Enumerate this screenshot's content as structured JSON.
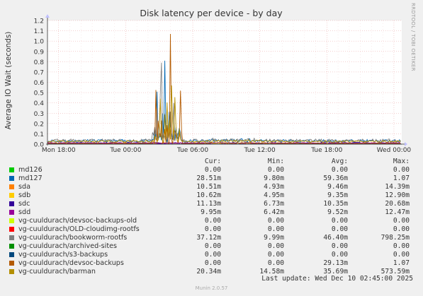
{
  "chart_data": {
    "type": "line",
    "title": "Disk latency per device - by day",
    "ylabel": "Average IO Wait (seconds)",
    "ylim": [
      0,
      1.2
    ],
    "yticks": [
      "0.0",
      "0.1",
      "0.2",
      "0.3",
      "0.4",
      "0.5",
      "0.6",
      "0.7",
      "0.8",
      "0.9",
      "1.0",
      "1.1",
      "1.2"
    ],
    "xticks": [
      "Mon 18:00",
      "Tue 00:00",
      "Tue 06:00",
      "Tue 12:00",
      "Tue 18:00",
      "Wed 00:00"
    ],
    "x_range_hours": [
      -1,
      30.7
    ],
    "grid": true,
    "side_label": "RRDTOOL / TOBI OETIKER",
    "column_headers": [
      "Cur:",
      "Min:",
      "Avg:",
      "Max:"
    ],
    "series": [
      {
        "name": "md126",
        "color": "#00cc00",
        "cur": "0.00",
        "min": "0.00",
        "avg": "0.00",
        "max": "0.00"
      },
      {
        "name": "md127",
        "color": "#0066b3",
        "cur": "28.51m",
        "min": "9.80m",
        "avg": "59.36m",
        "max": "1.07"
      },
      {
        "name": "sda",
        "color": "#ff8000",
        "cur": "10.51m",
        "min": "4.93m",
        "avg": "9.46m",
        "max": "14.39m"
      },
      {
        "name": "sdb",
        "color": "#ffcc00",
        "cur": "10.62m",
        "min": "4.95m",
        "avg": "9.35m",
        "max": "12.90m"
      },
      {
        "name": "sdc",
        "color": "#330099",
        "cur": "11.13m",
        "min": "6.73m",
        "avg": "10.35m",
        "max": "20.68m"
      },
      {
        "name": "sdd",
        "color": "#990099",
        "cur": "9.95m",
        "min": "6.42m",
        "avg": "9.52m",
        "max": "12.47m"
      },
      {
        "name": "vg-cuuldurach/devsoc-backups-old",
        "color": "#ccff00",
        "cur": "0.00",
        "min": "0.00",
        "avg": "0.00",
        "max": "0.00"
      },
      {
        "name": "vg-cuuldurach/OLD-cloudimg-rootfs",
        "color": "#ff0000",
        "cur": "0.00",
        "min": "0.00",
        "avg": "0.00",
        "max": "0.00"
      },
      {
        "name": "vg-cuuldurach/bookworm-rootfs",
        "color": "#808080",
        "cur": "37.12m",
        "min": "9.99m",
        "avg": "46.40m",
        "max": "798.25m"
      },
      {
        "name": "vg-cuuldurach/archived-sites",
        "color": "#008f00",
        "cur": "0.00",
        "min": "0.00",
        "avg": "0.00",
        "max": "0.00"
      },
      {
        "name": "vg-cuuldurach/s3-backups",
        "color": "#00487d",
        "cur": "0.00",
        "min": "0.00",
        "avg": "0.00",
        "max": "0.00"
      },
      {
        "name": "vg-cuuldurach/devsoc-backups",
        "color": "#b35a00",
        "cur": "0.00",
        "min": "0.00",
        "avg": "29.13m",
        "max": "1.07"
      },
      {
        "name": "vg-cuuldurach/barman",
        "color": "#b38f00",
        "cur": "20.34m",
        "min": "14.58m",
        "avg": "35.69m",
        "max": "573.59m"
      }
    ],
    "last_update": "Last update:  Wed Dec 10 02:45:00 2025",
    "footer": "Munin 2.0.57"
  }
}
